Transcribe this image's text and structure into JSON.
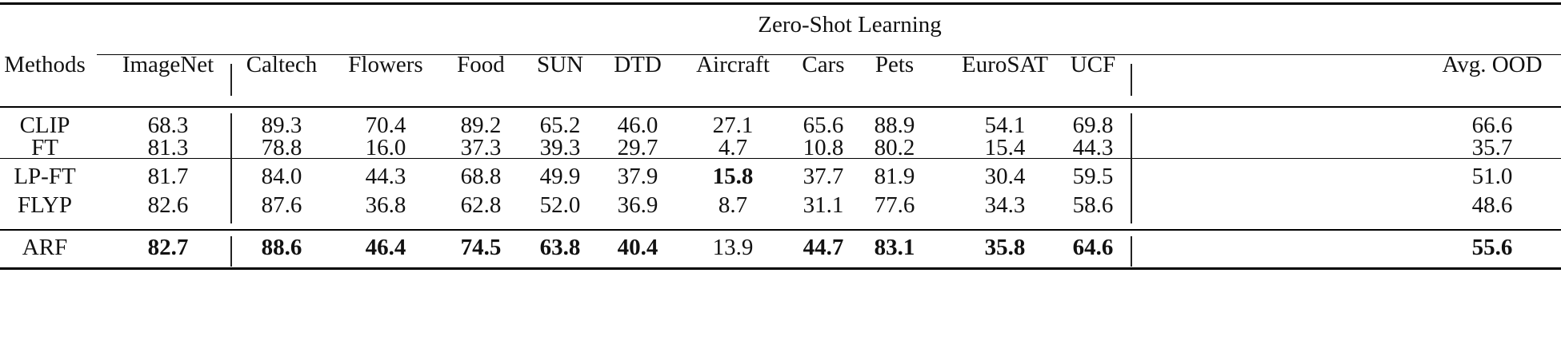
{
  "table": {
    "group_header": "Zero-Shot Learning",
    "columns": [
      "Methods",
      "ImageNet",
      "Caltech",
      "Flowers",
      "Food",
      "SUN",
      "DTD",
      "Aircraft",
      "Cars",
      "Pets",
      "EuroSAT",
      "UCF",
      "Avg. OOD"
    ],
    "rows": [
      {
        "method": "CLIP",
        "values": [
          "68.3",
          "89.3",
          "70.4",
          "89.2",
          "65.2",
          "46.0",
          "27.1",
          "65.6",
          "88.9",
          "54.1",
          "69.8",
          "66.6"
        ],
        "bold": []
      },
      {
        "method": "FT",
        "values": [
          "81.3",
          "78.8",
          "16.0",
          "37.3",
          "39.3",
          "29.7",
          "4.7",
          "10.8",
          "80.2",
          "15.4",
          "44.3",
          "35.7"
        ],
        "bold": []
      },
      {
        "method": "LP-FT",
        "values": [
          "81.7",
          "84.0",
          "44.3",
          "68.8",
          "49.9",
          "37.9",
          "15.8",
          "37.7",
          "81.9",
          "30.4",
          "59.5",
          "51.0"
        ],
        "bold": [
          6
        ]
      },
      {
        "method": "FLYP",
        "values": [
          "82.6",
          "87.6",
          "36.8",
          "62.8",
          "52.0",
          "36.9",
          "8.7",
          "31.1",
          "77.6",
          "34.3",
          "58.6",
          "48.6"
        ],
        "bold": []
      },
      {
        "method": "ARF",
        "values": [
          "82.7",
          "88.6",
          "46.4",
          "74.5",
          "63.8",
          "40.4",
          "13.9",
          "44.7",
          "83.1",
          "35.8",
          "64.6",
          "55.6"
        ],
        "bold": [
          0,
          1,
          2,
          3,
          4,
          5,
          7,
          8,
          9,
          10,
          11
        ]
      }
    ]
  }
}
